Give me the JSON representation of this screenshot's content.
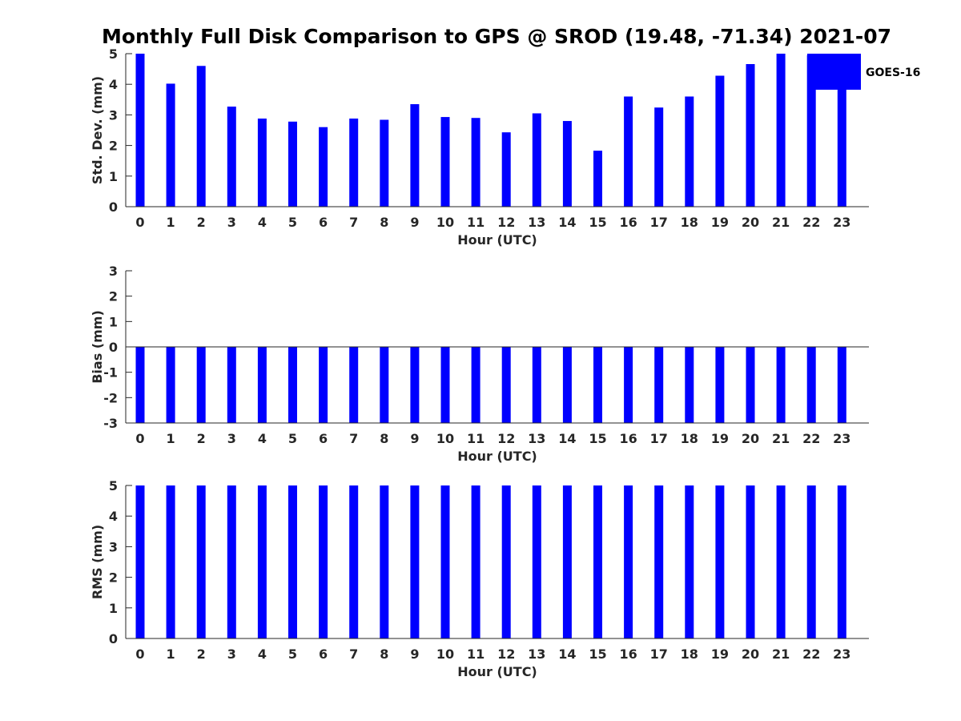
{
  "title": "Monthly Full Disk Comparison to GPS @ SROD (19.48, -71.34) 2021-07",
  "colors": {
    "bar": "#0000ff",
    "axis": "#262626",
    "background": "#ffffff"
  },
  "legend": {
    "label": "GOES-16",
    "position": "top-right"
  },
  "chart_data": [
    {
      "type": "bar",
      "name": "std-dev",
      "categories": [
        "0",
        "1",
        "2",
        "3",
        "4",
        "5",
        "6",
        "7",
        "8",
        "9",
        "10",
        "11",
        "12",
        "13",
        "14",
        "15",
        "16",
        "17",
        "18",
        "19",
        "20",
        "21",
        "22",
        "23"
      ],
      "series": [
        {
          "name": "GOES-16",
          "values": [
            5.0,
            4.02,
            4.6,
            3.27,
            2.88,
            2.78,
            2.6,
            2.88,
            2.84,
            3.35,
            2.93,
            2.9,
            2.43,
            3.05,
            2.8,
            1.83,
            3.6,
            3.24,
            3.6,
            4.28,
            4.66,
            5.0,
            4.95,
            5.0
          ]
        }
      ],
      "xlabel": "Hour (UTC)",
      "ylabel": "Std. Dev. (mm)",
      "ylim": [
        0,
        5
      ],
      "yticks": [
        "0",
        "1",
        "2",
        "3",
        "4",
        "5"
      ]
    },
    {
      "type": "bar",
      "name": "bias",
      "categories": [
        "0",
        "1",
        "2",
        "3",
        "4",
        "5",
        "6",
        "7",
        "8",
        "9",
        "10",
        "11",
        "12",
        "13",
        "14",
        "15",
        "16",
        "17",
        "18",
        "19",
        "20",
        "21",
        "22",
        "23"
      ],
      "series": [
        {
          "name": "GOES-16",
          "values": [
            -3,
            -3,
            -3,
            -3,
            -3,
            -3,
            -3,
            -3,
            -3,
            -3,
            -3,
            -3,
            -3,
            -3,
            -3,
            -3,
            -3,
            -3,
            -3,
            -3,
            -3,
            -3,
            -3,
            -3
          ]
        }
      ],
      "xlabel": "Hour (UTC)",
      "ylabel": "Bias (mm)",
      "ylim": [
        -3,
        3
      ],
      "yticks": [
        "-3",
        "-2",
        "-1",
        "0",
        "1",
        "2",
        "3"
      ]
    },
    {
      "type": "bar",
      "name": "rms",
      "categories": [
        "0",
        "1",
        "2",
        "3",
        "4",
        "5",
        "6",
        "7",
        "8",
        "9",
        "10",
        "11",
        "12",
        "13",
        "14",
        "15",
        "16",
        "17",
        "18",
        "19",
        "20",
        "21",
        "22",
        "23"
      ],
      "series": [
        {
          "name": "GOES-16",
          "values": [
            5,
            5,
            5,
            5,
            5,
            5,
            5,
            5,
            5,
            5,
            5,
            5,
            5,
            5,
            5,
            5,
            5,
            5,
            5,
            5,
            5,
            5,
            5,
            5
          ]
        }
      ],
      "xlabel": "Hour (UTC)",
      "ylabel": "RMS (mm)",
      "ylim": [
        0,
        5
      ],
      "yticks": [
        "0",
        "1",
        "2",
        "3",
        "4",
        "5"
      ]
    }
  ]
}
